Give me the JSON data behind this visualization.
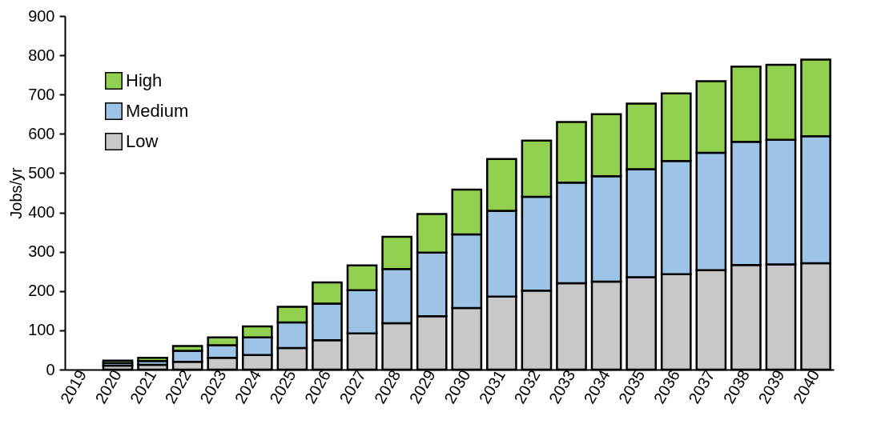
{
  "chart_data": {
    "type": "bar",
    "stacked": true,
    "ylabel": "Jobs/yr",
    "categories": [
      "2019",
      "2020",
      "2021",
      "2022",
      "2023",
      "2024",
      "2025",
      "2026",
      "2027",
      "2028",
      "2029",
      "2030",
      "2031",
      "2032",
      "2033",
      "2034",
      "2035",
      "2036",
      "2037",
      "2038",
      "2039",
      "2040"
    ],
    "series": [
      {
        "name": "Low",
        "color": "#c8c8c8",
        "values": [
          null,
          10,
          12,
          20,
          30,
          37,
          55,
          75,
          92,
          118,
          136,
          157,
          186,
          201,
          220,
          224,
          235,
          243,
          253,
          266,
          268,
          271
        ]
      },
      {
        "name": "Medium",
        "color": "#9dc3e6",
        "values": [
          null,
          7,
          10,
          28,
          32,
          45,
          65,
          93,
          110,
          138,
          162,
          187,
          218,
          239,
          256,
          268,
          275,
          288,
          299,
          314,
          317,
          323
        ]
      },
      {
        "name": "High",
        "color": "#92d050",
        "values": [
          null,
          6,
          8,
          12,
          20,
          28,
          40,
          54,
          63,
          82,
          98,
          114,
          132,
          143,
          154,
          158,
          167,
          172,
          182,
          191,
          191,
          195
        ]
      }
    ],
    "ylim": [
      0,
      900
    ],
    "yticks": [
      0,
      100,
      200,
      300,
      400,
      500,
      600,
      700,
      800,
      900
    ],
    "legend": "top left",
    "grid": false
  }
}
